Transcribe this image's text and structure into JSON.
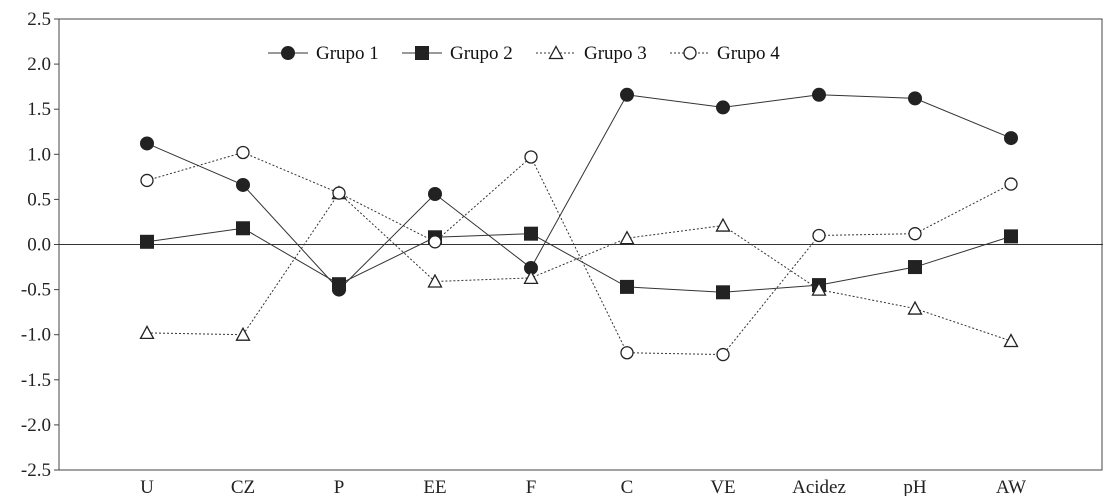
{
  "chart_data": {
    "type": "line",
    "title": "",
    "xlabel": "",
    "ylabel": "",
    "categories": [
      "U",
      "CZ",
      "P",
      "EE",
      "F",
      "C",
      "VE",
      "Acidez",
      "pH",
      "AW"
    ],
    "ylim": [
      -2.5,
      2.5
    ],
    "yticks": [
      "2.5",
      "2.0",
      "1.5",
      "1.0",
      "0.5",
      "0.0",
      "-0.5",
      "-1.0",
      "-1.5",
      "-2.0",
      "-2.5"
    ],
    "grid": false,
    "zero_line": true,
    "legend_position": "top-center",
    "series": [
      {
        "name": "Grupo 1",
        "marker": "filled-circle",
        "line": "solid",
        "values": [
          1.12,
          0.66,
          -0.5,
          0.56,
          -0.26,
          1.66,
          1.52,
          1.66,
          1.62,
          1.18
        ]
      },
      {
        "name": "Grupo 2",
        "marker": "filled-square",
        "line": "solid",
        "values": [
          0.03,
          0.18,
          -0.44,
          0.08,
          0.12,
          -0.47,
          -0.53,
          -0.45,
          -0.25,
          0.09
        ]
      },
      {
        "name": "Grupo 3",
        "marker": "open-triangle",
        "line": "dotted",
        "values": [
          -0.98,
          -1.0,
          0.57,
          -0.41,
          -0.37,
          0.07,
          0.21,
          -0.5,
          -0.71,
          -1.07
        ]
      },
      {
        "name": "Grupo 4",
        "marker": "open-circle",
        "line": "dotted",
        "values": [
          0.71,
          1.02,
          0.57,
          0.03,
          0.97,
          -1.2,
          -1.22,
          0.1,
          0.12,
          0.67
        ]
      }
    ],
    "colors": {
      "line": "#333333",
      "marker": "#222222",
      "axis": "#444444",
      "background": "#ffffff"
    }
  }
}
